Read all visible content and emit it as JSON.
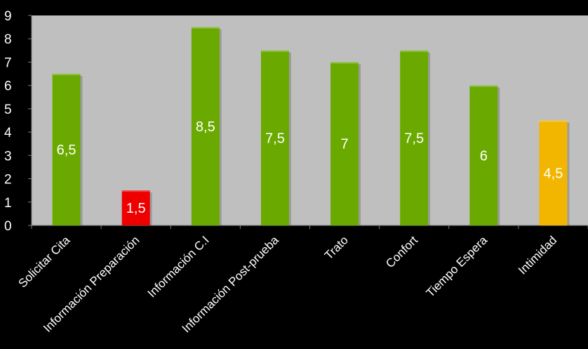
{
  "chart_data": {
    "type": "bar",
    "categories": [
      "Solicitar Cita",
      "Información Preparación",
      "Información C.I",
      "Información Post-prueba",
      "Trato",
      "Confort",
      "Tiempo Espera",
      "Intimidad"
    ],
    "values": [
      6.5,
      1.5,
      8.5,
      7.5,
      7,
      7.5,
      6,
      4.5
    ],
    "data_labels": [
      "6,5",
      "1,5",
      "8,5",
      "7,5",
      "7",
      "7,5",
      "6",
      "4,5"
    ],
    "bar_colors": [
      "#6aaa00",
      "#ee0000",
      "#6aaa00",
      "#6aaa00",
      "#6aaa00",
      "#6aaa00",
      "#6aaa00",
      "#f2b600"
    ],
    "y_ticks": [
      "0",
      "1",
      "2",
      "3",
      "4",
      "5",
      "6",
      "7",
      "8",
      "9"
    ],
    "ylim": [
      0,
      9
    ],
    "grid": false,
    "legend": "none",
    "title": "",
    "xlabel": "",
    "ylabel": "",
    "colors": {
      "background": "#000000",
      "plot_area": "#bfbfbf",
      "axis": "#7f7f7f",
      "text": "#ffffff"
    }
  }
}
